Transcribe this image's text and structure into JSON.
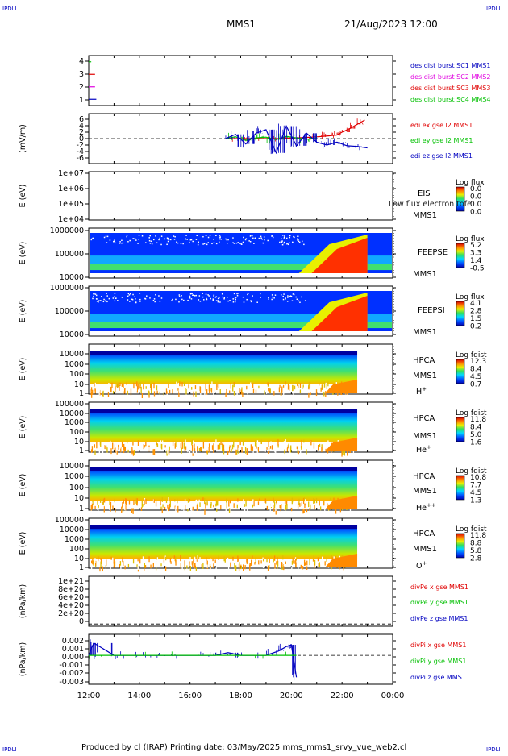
{
  "header": {
    "corner_left": "IPDLI",
    "corner_right": "IPDLI",
    "mission": "MMS1",
    "datetime": "21/Aug/2023 12:00"
  },
  "footer": {
    "corner_left": "IPDLI",
    "corner_right": "IPDLI",
    "credit": "Produced by cl (IRAP)   Printing date: 03/May/2025   mms_mms1_srvy_vue_web2.cl"
  },
  "time_axis": {
    "ticks": [
      "12:00",
      "14:00",
      "16:00",
      "18:00",
      "20:00",
      "22:00",
      "00:00"
    ],
    "range_hours": [
      12,
      24
    ]
  },
  "colors": {
    "red": "#e00000",
    "green": "#00c000",
    "blue": "#0000c0",
    "magenta": "#e000e0"
  },
  "chart_data": [
    {
      "type": "line",
      "id": "burst",
      "ylabel": "",
      "yticks": [
        "4",
        "3",
        "2",
        "1"
      ],
      "ylim": [
        0.5,
        4.5
      ],
      "legend": [
        {
          "text": "des dist burst SC1 MMS1",
          "color": "#0000c0"
        },
        {
          "text": "des dist burst SC2 MMS2",
          "color": "#e000e0"
        },
        {
          "text": "des dist burst SC3 MMS3",
          "color": "#e00000"
        },
        {
          "text": "des dist burst SC4 MMS4",
          "color": "#00c000"
        }
      ],
      "series": [
        {
          "name": "des dist burst SC1 MMS1",
          "y": 1,
          "x": [
            12.0,
            12.3
          ]
        },
        {
          "name": "des dist burst SC2 MMS2",
          "y": 2,
          "x": [
            12.0,
            12.25
          ]
        },
        {
          "name": "des dist burst SC3 MMS3",
          "y": 3,
          "x": [
            12.0,
            12.25
          ]
        },
        {
          "name": "des dist burst SC4 MMS4",
          "y": 4,
          "x": [
            12.0,
            12.1
          ]
        }
      ]
    },
    {
      "type": "line",
      "id": "edi",
      "ylabel": "(mV/m)",
      "yticks": [
        "6",
        "4",
        "2",
        "0",
        "-2",
        "-4",
        "-6"
      ],
      "ylim": [
        -7,
        7
      ],
      "legend": [
        {
          "text": "edi ex gse l2 MMS1",
          "color": "#e00000"
        },
        {
          "text": "edi ey gse l2 MMS1",
          "color": "#00c000"
        },
        {
          "text": "edi ez gse l2 MMS1",
          "color": "#0000c0"
        }
      ],
      "series": [
        {
          "name": "edi ex gse l2 MMS1",
          "x": [
            17.5,
            18.5,
            19.5,
            20.5,
            21.0,
            21.5,
            21.8,
            22.0,
            22.3,
            22.6,
            22.9
          ],
          "y": [
            0,
            0,
            0,
            0.3,
            0.5,
            0.8,
            1.0,
            1.8,
            2.8,
            4.0,
            5.2
          ]
        },
        {
          "name": "edi ey gse l2 MMS1",
          "x": [
            17.4,
            17.8,
            18.2,
            18.6,
            19.0,
            19.4,
            19.8,
            20.2,
            20.6,
            21.0
          ],
          "y": [
            0,
            0.5,
            -0.5,
            0.2,
            0.4,
            -0.3,
            0.6,
            0.2,
            -0.2,
            0.1
          ]
        },
        {
          "name": "edi ez gse l2 MMS1",
          "x": [
            17.4,
            17.8,
            18.2,
            18.6,
            19.0,
            19.4,
            19.8,
            20.2,
            20.6,
            21.0,
            21.4,
            21.8,
            22.2,
            22.6,
            23.0
          ],
          "y": [
            0,
            1.2,
            -1.5,
            1.5,
            2.5,
            -4.0,
            3.5,
            -2.0,
            1.5,
            -1.0,
            -1.8,
            -1.0,
            -2.0,
            -2.2,
            -2.6
          ]
        }
      ]
    },
    {
      "type": "heatmap",
      "id": "eis",
      "ylabel": "E (eV)",
      "yticks": [
        "1e+07",
        "1e+06",
        "1e+05",
        "1e+04"
      ],
      "ylim": [
        10000,
        10000000
      ],
      "log_y": true,
      "instrument": "EIS",
      "spacecraft": "MMS1",
      "overlay": "Low flux electron tofe",
      "colorbar_title": "Log flux",
      "colorbar_ticks": [
        "0.0",
        "0.0",
        "0.0",
        "0.0"
      ],
      "data": []
    },
    {
      "type": "heatmap",
      "id": "feepse",
      "ylabel": "E (eV)",
      "yticks": [
        "1000000",
        "100000",
        "10000"
      ],
      "ylim": [
        10000,
        1000000
      ],
      "log_y": true,
      "instrument": "FEEPSE",
      "spacecraft": "MMS1",
      "colorbar_title": "Log flux",
      "colorbar_ticks": [
        "5.2",
        "3.3",
        "1.4",
        "-0.5"
      ],
      "zlim": [
        -0.5,
        5.2
      ],
      "data_coverage": [
        12.0,
        24.0
      ]
    },
    {
      "type": "heatmap",
      "id": "feepsi",
      "ylabel": "E (eV)",
      "yticks": [
        "1000000",
        "100000",
        "10000"
      ],
      "ylim": [
        10000,
        1000000
      ],
      "log_y": true,
      "instrument": "FEEPSI",
      "spacecraft": "MMS1",
      "colorbar_title": "Log flux",
      "colorbar_ticks": [
        "4.1",
        "2.8",
        "1.5",
        "0.2"
      ],
      "zlim": [
        0.2,
        4.1
      ],
      "data_coverage": [
        12.0,
        24.0
      ]
    },
    {
      "type": "heatmap",
      "id": "hpca-h",
      "ylabel": "E (eV)",
      "yticks": [
        "10000",
        "1000",
        "100",
        "10",
        "1"
      ],
      "ylim": [
        1,
        40000
      ],
      "log_y": true,
      "instrument": "HPCA",
      "spacecraft": "MMS1",
      "species": "H",
      "species_charge": "+",
      "colorbar_title": "Log fdist",
      "colorbar_ticks": [
        "12.3",
        "8.4",
        "4.5",
        "0.7"
      ],
      "zlim": [
        0.7,
        12.3
      ],
      "data_coverage": [
        12.0,
        22.6
      ]
    },
    {
      "type": "heatmap",
      "id": "hpca-he",
      "ylabel": "E (eV)",
      "yticks": [
        "100000",
        "10000",
        "1000",
        "100",
        "10",
        "1"
      ],
      "ylim": [
        1,
        100000
      ],
      "log_y": true,
      "instrument": "HPCA",
      "spacecraft": "MMS1",
      "species": "He",
      "species_charge": "+",
      "colorbar_title": "Log fdist",
      "colorbar_ticks": [
        "11.8",
        "8.4",
        "5.0",
        "1.6"
      ],
      "zlim": [
        1.6,
        11.8
      ],
      "data_coverage": [
        12.0,
        22.6
      ]
    },
    {
      "type": "heatmap",
      "id": "hpca-he2",
      "ylabel": "E (eV)",
      "yticks": [
        "10000",
        "1000",
        "100",
        "10",
        "1"
      ],
      "ylim": [
        1,
        40000
      ],
      "log_y": true,
      "instrument": "HPCA",
      "spacecraft": "MMS1",
      "species": "He",
      "species_charge": "++",
      "colorbar_title": "Log fdist",
      "colorbar_ticks": [
        "10.8",
        "7.7",
        "4.5",
        "1.3"
      ],
      "zlim": [
        1.3,
        10.8
      ],
      "data_coverage": [
        12.0,
        22.6
      ]
    },
    {
      "type": "heatmap",
      "id": "hpca-o",
      "ylabel": "E (eV)",
      "yticks": [
        "100000",
        "10000",
        "1000",
        "100",
        "10",
        "1"
      ],
      "ylim": [
        1,
        100000
      ],
      "log_y": true,
      "instrument": "HPCA",
      "spacecraft": "MMS1",
      "species": "O",
      "species_charge": "+",
      "colorbar_title": "Log fdist",
      "colorbar_ticks": [
        "11.8",
        "8.8",
        "5.8",
        "2.8"
      ],
      "zlim": [
        2.8,
        11.8
      ],
      "data_coverage": [
        12.0,
        22.6
      ]
    },
    {
      "type": "line",
      "id": "divpe",
      "ylabel": "(nPa/km)",
      "yticks": [
        "1e+21",
        "8e+20",
        "6e+20",
        "4e+20",
        "2e+20",
        "0"
      ],
      "ylim": [
        -5e+19,
        1.05e+21
      ],
      "legend": [
        {
          "text": "divPe x gse MMS1",
          "color": "#e00000"
        },
        {
          "text": "divPe y gse MMS1",
          "color": "#00c000"
        },
        {
          "text": "divPe z gse MMS1",
          "color": "#0000c0"
        }
      ],
      "series": []
    },
    {
      "type": "line",
      "id": "divpi",
      "ylabel": "(nPa/km)",
      "yticks": [
        "0.002",
        "0.001",
        "0.000",
        "-0.001",
        "-0.002",
        "-0.003"
      ],
      "ylim": [
        -0.0033,
        0.0024
      ],
      "legend": [
        {
          "text": "divPi x gse MMS1",
          "color": "#e00000"
        },
        {
          "text": "divPi y gse MMS1",
          "color": "#00c000"
        },
        {
          "text": "divPi z gse MMS1",
          "color": "#0000c0"
        }
      ],
      "series": [
        {
          "name": "divPi z gse MMS1",
          "x": [
            12.0,
            12.2,
            13.0,
            14.0,
            15.0,
            16.0,
            17.0,
            17.5,
            18.0,
            19.0,
            19.5,
            19.8,
            20.0,
            20.2
          ],
          "y": [
            0.0,
            0.0014,
            0.0,
            0.0,
            0.0,
            0.0,
            0.0,
            0.0003,
            0.0,
            0.0,
            0.0005,
            0.001,
            0.0012,
            -0.0025
          ]
        },
        {
          "name": "divPi y gse MMS1",
          "x": [
            12.0,
            16.0,
            20.2
          ],
          "y": [
            0.0,
            0.0,
            0.0
          ]
        }
      ]
    }
  ]
}
